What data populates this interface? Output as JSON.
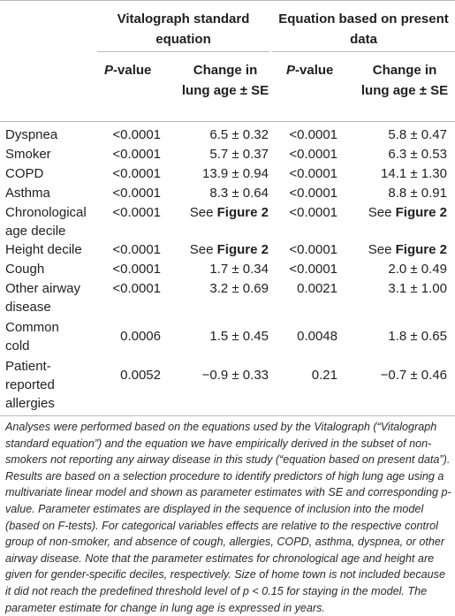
{
  "header": {
    "group1": "Vitalograph standard equation",
    "group2": "Equation based on present data",
    "pvalue_italic": "P",
    "pvalue_rest": "-value",
    "change": "Change in lung age ± SE"
  },
  "rows": [
    {
      "label": "Dyspnea",
      "p1": "<0.0001",
      "c1": "6.5 ± 0.32",
      "p2": "<0.0001",
      "c2": "5.8 ± 0.47"
    },
    {
      "label": "Smoker",
      "p1": "<0.0001",
      "c1": "5.7 ± 0.37",
      "p2": "<0.0001",
      "c2": "6.3 ± 0.53"
    },
    {
      "label": "COPD",
      "p1": "<0.0001",
      "c1": "13.9 ± 0.94",
      "p2": "<0.0001",
      "c2": "14.1 ± 1.30"
    },
    {
      "label": "Asthma",
      "p1": "<0.0001",
      "c1": "8.3 ± 0.64",
      "p2": "<0.0001",
      "c2": "8.8 ± 0.91"
    },
    {
      "label": "Chronological age decile",
      "p1": "<0.0001",
      "c1_pre": "See ",
      "c1_bold": "Figure 2",
      "p2": "<0.0001",
      "c2_pre": "See ",
      "c2_bold": "Figure 2"
    },
    {
      "label": "Height decile",
      "p1": "<0.0001",
      "c1_pre": "See ",
      "c1_bold": "Figure 2",
      "p2": "<0.0001",
      "c2_pre": "See ",
      "c2_bold": "Figure 2"
    },
    {
      "label": "Cough",
      "p1": "<0.0001",
      "c1": "1.7 ± 0.34",
      "p2": "<0.0001",
      "c2": "2.0 ± 0.49"
    },
    {
      "label": "Other airway disease",
      "p1": "<0.0001",
      "c1": "3.2 ± 0.69",
      "p2": "0.0021",
      "c2": "3.1 ± 1.00"
    },
    {
      "label": "Common cold",
      "p1": "0.0006",
      "c1": "1.5 ± 0.45",
      "p2": "0.0048",
      "c2": "1.8 ± 0.65"
    },
    {
      "label": "Patient-reported allergies",
      "p1": "0.0052",
      "c1": "−0.9 ± 0.33",
      "p2": "0.21",
      "c2": "−0.7 ± 0.46"
    }
  ],
  "footnote": "Analyses were performed based on the equations used by the Vitalograph (“Vitalograph standard equation”) and the equation we have empirically derived in the subset of non-smokers not reporting any airway disease in this study (“equation based on present data”). Results are based on a selection procedure to identify predictors of high lung age using a multivariate linear model and shown as parameter estimates with SE and corresponding p-value. Parameter estimates are displayed in the sequence of inclusion into the model (based on F-tests). For categorical variables effects are relative to the respective control group of non-smoker, and absence of cough, allergies, COPD, asthma, dyspnea, or other airway disease. Note that the parameter estimates for chronological age and height are given for gender-specific deciles, respectively. Size of home town is not included because it did not reach the predefined threshold level of p < 0.15 for staying in the model. The parameter estimate for change in lung age is expressed in years."
}
